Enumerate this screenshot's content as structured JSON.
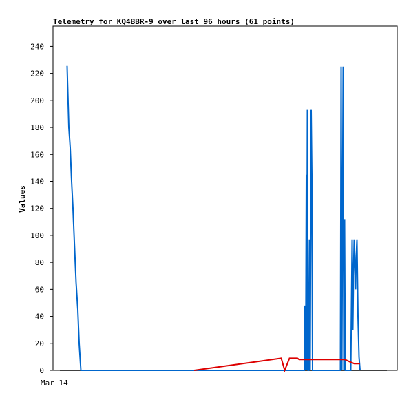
{
  "chart_data": {
    "type": "line",
    "title": "Telemetry for KQ4BBR-9 over last 96 hours (61 points)",
    "xlabel": "",
    "ylabel": "Values",
    "x_tick_labels": [
      "Mar 14"
    ],
    "xlim": [
      0,
      100
    ],
    "ylim": [
      0,
      255
    ],
    "y_ticks": [
      0,
      20,
      40,
      60,
      80,
      100,
      120,
      140,
      160,
      180,
      200,
      220,
      240
    ],
    "grid": false,
    "legend": "none",
    "series": [
      {
        "color": "#000000",
        "points": [
          [
            2,
            0
          ],
          [
            97,
            0
          ]
        ]
      },
      {
        "color": "#0066cc",
        "points": [
          [
            3.9,
            225
          ],
          [
            4.1,
            225
          ],
          [
            4.6,
            180
          ],
          [
            5.0,
            165
          ],
          [
            5.4,
            140
          ],
          [
            5.8,
            120
          ],
          [
            6.2,
            95
          ],
          [
            6.7,
            65
          ],
          [
            7.2,
            45
          ],
          [
            7.6,
            20
          ],
          [
            8.1,
            0
          ],
          [
            73.0,
            0
          ],
          [
            73.2,
            48
          ],
          [
            73.4,
            0
          ],
          [
            73.6,
            145
          ],
          [
            73.7,
            0
          ],
          [
            73.9,
            193
          ],
          [
            74.1,
            0
          ],
          [
            74.3,
            0
          ],
          [
            74.5,
            97
          ],
          [
            74.7,
            0
          ],
          [
            75.0,
            193
          ],
          [
            75.2,
            145
          ],
          [
            75.4,
            0
          ],
          [
            83.5,
            0
          ],
          [
            83.7,
            225
          ],
          [
            83.9,
            0
          ],
          [
            84.1,
            112
          ],
          [
            84.3,
            225
          ],
          [
            84.5,
            0
          ],
          [
            84.7,
            112
          ],
          [
            84.9,
            0
          ],
          [
            86.5,
            0
          ],
          [
            86.7,
            48
          ],
          [
            86.9,
            97
          ],
          [
            87.1,
            30
          ],
          [
            87.3,
            72
          ],
          [
            87.5,
            97
          ],
          [
            87.7,
            80
          ],
          [
            87.9,
            60
          ],
          [
            88.1,
            85
          ],
          [
            88.3,
            97
          ],
          [
            88.6,
            40
          ],
          [
            88.9,
            10
          ],
          [
            89.2,
            0
          ]
        ]
      },
      {
        "color": "#dd0000",
        "points": [
          [
            41,
            0
          ],
          [
            66.3,
            9
          ],
          [
            67.3,
            0
          ],
          [
            68.7,
            9
          ],
          [
            71.0,
            9
          ],
          [
            71.5,
            8
          ],
          [
            84.8,
            8
          ],
          [
            86.5,
            6
          ],
          [
            87.5,
            5
          ],
          [
            89.2,
            5
          ]
        ]
      }
    ]
  }
}
